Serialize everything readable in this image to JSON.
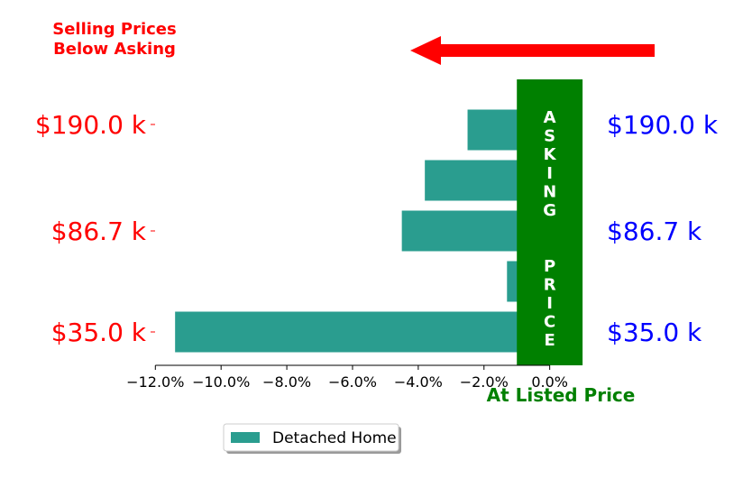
{
  "chart_data": {
    "type": "bar",
    "orientation": "horizontal",
    "series": [
      {
        "name": "Detached Home",
        "color": "#2a9d8f",
        "values": [
          -11.4,
          -1.3,
          -4.5,
          -3.8,
          -2.5
        ]
      }
    ],
    "x_ticks": [
      "−12.0%",
      "−10.0%",
      "−8.0%",
      "−6.0%",
      "−4.0%",
      "−2.0%",
      "0.0%"
    ],
    "x_tick_values": [
      -12,
      -10,
      -8,
      -6,
      -4,
      -2,
      0
    ],
    "xlim": [
      -12,
      1
    ],
    "left_tick_labels": [
      "$35.0 k",
      "$86.7 k",
      "$190.0 k"
    ],
    "right_tick_labels": [
      "$35.0 k",
      "$86.7 k",
      "$190.0 k"
    ],
    "left_label_color": "#ff0000",
    "right_label_color": "#0000ff",
    "band": {
      "label": "ASKING  PRICE",
      "color": "#008000",
      "x_range": [
        -1,
        1
      ]
    },
    "annotations": {
      "top_left_line1": "Selling Prices",
      "top_left_line2": "Below Asking",
      "bottom": "At Listed Price",
      "arrow_color": "#ff0000",
      "arrow_direction": "left"
    },
    "legend": {
      "position": "bottom-center",
      "entries": [
        "Detached Home"
      ]
    }
  }
}
